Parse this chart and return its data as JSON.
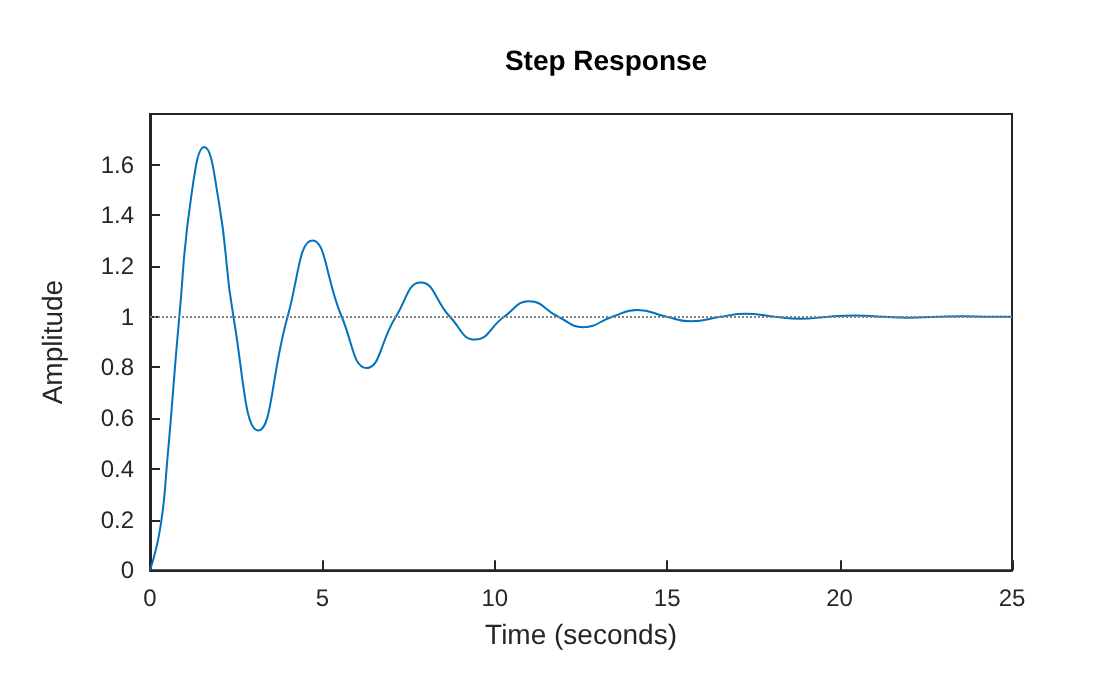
{
  "chart_data": {
    "type": "line",
    "title": "Step Response",
    "xlabel": "Time (seconds)",
    "ylabel": "Amplitude",
    "x": [
      0,
      0.3,
      0.5,
      0.85,
      1.2,
      1.571,
      2.0,
      2.42,
      3.142,
      3.99,
      4.712,
      5.56,
      6.283,
      7.13,
      7.854,
      8.7,
      9.425,
      10.27,
      10.996,
      11.84,
      12.566,
      13.41,
      14.137,
      14.98,
      15.708,
      16.55,
      17.279,
      18.12,
      18.85,
      19.69,
      20.42,
      21.26,
      21.991,
      22.83,
      23.562,
      24.4,
      25
    ],
    "series": [
      {
        "color": "#0072bd",
        "values": [
          0,
          0.169,
          0.431,
          1,
          1.479,
          1.67,
          1.45,
          1,
          0.551,
          1,
          1.301,
          1,
          0.798,
          1,
          1.135,
          1,
          0.91,
          1,
          1.061,
          1,
          0.959,
          1,
          1.027,
          1,
          0.982,
          1,
          1.012,
          1,
          0.992,
          1,
          1.005,
          1,
          0.996,
          1,
          1.002,
          1,
          1.0
        ]
      }
    ],
    "xlim": [
      0,
      25
    ],
    "xticks": [
      0,
      5,
      10,
      15,
      20,
      25
    ],
    "ylim": [
      0,
      1.8
    ],
    "yticks": [
      0,
      0.2,
      0.4,
      0.6,
      0.8,
      1,
      1.2,
      1.4,
      1.6
    ],
    "ref_lines": [
      {
        "axis": "y",
        "value": 1,
        "color": "#808080",
        "line_style": "dotted"
      }
    ],
    "grid": false,
    "marker": "none",
    "line_style": "solid"
  }
}
